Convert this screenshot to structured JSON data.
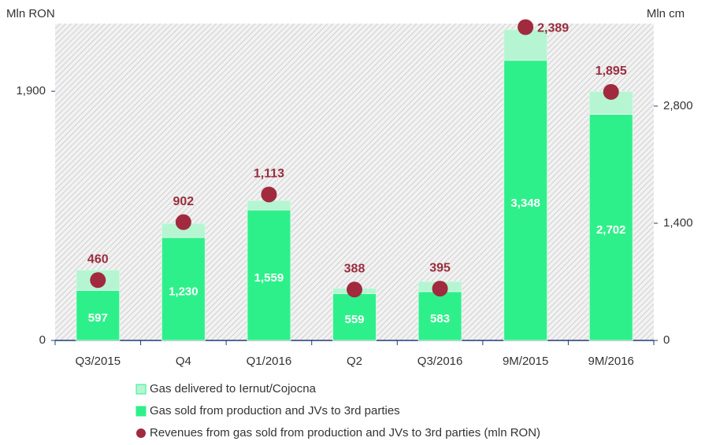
{
  "chart_data": {
    "type": "bar",
    "stacked": true,
    "ylabel": "Mln RON",
    "y2label": "Mln cm",
    "categories": [
      "Q3/2015",
      "Q4",
      "Q1/2016",
      "Q2",
      "Q3/2016",
      "9M/2015",
      "9M/2016"
    ],
    "series": [
      {
        "name": "Gas sold from production and JVs to 3rd parties",
        "type": "bar",
        "axis": "y2",
        "color": "#2ef08a",
        "values": [
          597,
          1230,
          1559,
          559,
          583,
          3348,
          2702
        ],
        "value_labels": [
          "597",
          "1,230",
          "1,559",
          "559",
          "583",
          "3,348",
          "2,702"
        ]
      },
      {
        "name": "Gas delivered to Iernut/Cojocna",
        "type": "bar",
        "axis": "y2",
        "color": "#b6f5d2",
        "values": [
          244,
          169,
          113,
          66,
          122,
          366,
          272
        ]
      },
      {
        "name": "Revenues from gas sold from production and JVs to 3rd parties (mln RON)",
        "type": "scatter",
        "axis": "y",
        "color": "#a12a3e",
        "values": [
          460,
          902,
          1113,
          388,
          395,
          2389,
          1895
        ],
        "value_labels": [
          "460",
          "902",
          "1,113",
          "388",
          "395",
          "2,389",
          "1,895"
        ]
      }
    ],
    "legend_order": [
      1,
      0,
      2
    ],
    "ylim": [
      0,
      2416
    ],
    "yticks": [
      0,
      {
        "value": 1900,
        "label": "1,900"
      }
    ],
    "y2lim": [
      0,
      3786
    ],
    "y2ticks": [
      0,
      {
        "value": 1400,
        "label": "1,400"
      },
      {
        "value": 2800,
        "label": "2,800"
      }
    ]
  }
}
